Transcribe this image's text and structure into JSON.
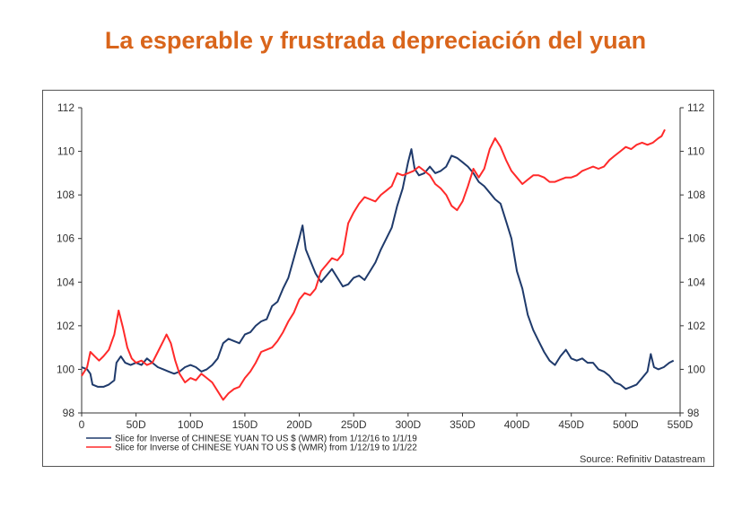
{
  "title": "La esperable y frustrada depreciación del yuan",
  "colors": {
    "title": "#d9651b",
    "series1": "#1f3a6b",
    "series2": "#ff2a2a"
  },
  "chart_data": {
    "type": "line",
    "xlim": [
      0,
      550
    ],
    "ylim": [
      98,
      112
    ],
    "x_ticks": [
      "0",
      "50D",
      "100D",
      "150D",
      "200D",
      "250D",
      "300D",
      "350D",
      "400D",
      "450D",
      "500D",
      "550D"
    ],
    "y_ticks": [
      "98",
      "100",
      "102",
      "104",
      "106",
      "108",
      "110",
      "112"
    ],
    "grid": false,
    "legend_position": "bottom-left",
    "source": "Source: Refinitiv Datastream",
    "series": [
      {
        "name": "Slice for Inverse of CHINESE YUAN TO US $ (WMR) from 1/12/16 to 1/1/19",
        "color": "#1f3a6b",
        "points": [
          [
            0,
            100.1
          ],
          [
            5,
            100.0
          ],
          [
            8,
            99.8
          ],
          [
            10,
            99.3
          ],
          [
            15,
            99.2
          ],
          [
            20,
            99.2
          ],
          [
            25,
            99.3
          ],
          [
            30,
            99.5
          ],
          [
            32,
            100.3
          ],
          [
            36,
            100.6
          ],
          [
            40,
            100.3
          ],
          [
            45,
            100.2
          ],
          [
            50,
            100.3
          ],
          [
            55,
            100.2
          ],
          [
            60,
            100.5
          ],
          [
            65,
            100.3
          ],
          [
            70,
            100.1
          ],
          [
            75,
            100.0
          ],
          [
            80,
            99.9
          ],
          [
            85,
            99.8
          ],
          [
            90,
            99.9
          ],
          [
            95,
            100.1
          ],
          [
            100,
            100.2
          ],
          [
            105,
            100.1
          ],
          [
            110,
            99.9
          ],
          [
            115,
            100.0
          ],
          [
            120,
            100.2
          ],
          [
            125,
            100.5
          ],
          [
            130,
            101.2
          ],
          [
            135,
            101.4
          ],
          [
            140,
            101.3
          ],
          [
            145,
            101.2
          ],
          [
            150,
            101.6
          ],
          [
            155,
            101.7
          ],
          [
            160,
            102.0
          ],
          [
            165,
            102.2
          ],
          [
            170,
            102.3
          ],
          [
            175,
            102.9
          ],
          [
            180,
            103.1
          ],
          [
            185,
            103.7
          ],
          [
            190,
            104.2
          ],
          [
            195,
            105.1
          ],
          [
            200,
            106.0
          ],
          [
            203,
            106.6
          ],
          [
            206,
            105.5
          ],
          [
            210,
            105.0
          ],
          [
            215,
            104.4
          ],
          [
            220,
            104.0
          ],
          [
            225,
            104.3
          ],
          [
            230,
            104.6
          ],
          [
            235,
            104.2
          ],
          [
            240,
            103.8
          ],
          [
            245,
            103.9
          ],
          [
            250,
            104.2
          ],
          [
            255,
            104.3
          ],
          [
            260,
            104.1
          ],
          [
            265,
            104.5
          ],
          [
            270,
            104.9
          ],
          [
            275,
            105.5
          ],
          [
            280,
            106.0
          ],
          [
            285,
            106.5
          ],
          [
            290,
            107.5
          ],
          [
            295,
            108.3
          ],
          [
            300,
            109.5
          ],
          [
            303,
            110.1
          ],
          [
            306,
            109.2
          ],
          [
            310,
            108.9
          ],
          [
            315,
            109.0
          ],
          [
            320,
            109.3
          ],
          [
            325,
            109.0
          ],
          [
            330,
            109.1
          ],
          [
            335,
            109.3
          ],
          [
            340,
            109.8
          ],
          [
            345,
            109.7
          ],
          [
            350,
            109.5
          ],
          [
            355,
            109.3
          ],
          [
            360,
            109.0
          ],
          [
            365,
            108.6
          ],
          [
            370,
            108.4
          ],
          [
            375,
            108.1
          ],
          [
            380,
            107.8
          ],
          [
            385,
            107.6
          ],
          [
            390,
            106.8
          ],
          [
            395,
            106.0
          ],
          [
            400,
            104.5
          ],
          [
            405,
            103.7
          ],
          [
            410,
            102.5
          ],
          [
            415,
            101.8
          ],
          [
            420,
            101.3
          ],
          [
            425,
            100.8
          ],
          [
            430,
            100.4
          ],
          [
            435,
            100.2
          ],
          [
            440,
            100.6
          ],
          [
            445,
            100.9
          ],
          [
            450,
            100.5
          ],
          [
            455,
            100.4
          ],
          [
            460,
            100.5
          ],
          [
            465,
            100.3
          ],
          [
            470,
            100.3
          ],
          [
            475,
            100.0
          ],
          [
            480,
            99.9
          ],
          [
            485,
            99.7
          ],
          [
            490,
            99.4
          ],
          [
            495,
            99.3
          ],
          [
            500,
            99.1
          ],
          [
            505,
            99.2
          ],
          [
            510,
            99.3
          ],
          [
            515,
            99.6
          ],
          [
            520,
            99.9
          ],
          [
            523,
            100.7
          ],
          [
            526,
            100.1
          ],
          [
            530,
            100.0
          ],
          [
            535,
            100.1
          ],
          [
            540,
            100.3
          ],
          [
            544,
            100.4
          ]
        ]
      },
      {
        "name": "Slice for Inverse of CHINESE YUAN TO US $ (WMR) from 1/12/19 to 1/1/22",
        "color": "#ff2a2a",
        "points": [
          [
            0,
            99.7
          ],
          [
            5,
            100.1
          ],
          [
            8,
            100.8
          ],
          [
            12,
            100.6
          ],
          [
            16,
            100.4
          ],
          [
            20,
            100.6
          ],
          [
            25,
            100.9
          ],
          [
            30,
            101.6
          ],
          [
            34,
            102.7
          ],
          [
            38,
            101.9
          ],
          [
            42,
            101.0
          ],
          [
            46,
            100.5
          ],
          [
            50,
            100.3
          ],
          [
            55,
            100.4
          ],
          [
            60,
            100.2
          ],
          [
            65,
            100.3
          ],
          [
            70,
            100.8
          ],
          [
            75,
            101.3
          ],
          [
            78,
            101.6
          ],
          [
            82,
            101.2
          ],
          [
            86,
            100.4
          ],
          [
            90,
            99.8
          ],
          [
            95,
            99.4
          ],
          [
            100,
            99.6
          ],
          [
            105,
            99.5
          ],
          [
            110,
            99.8
          ],
          [
            115,
            99.6
          ],
          [
            120,
            99.4
          ],
          [
            125,
            99.0
          ],
          [
            130,
            98.6
          ],
          [
            135,
            98.9
          ],
          [
            140,
            99.1
          ],
          [
            145,
            99.2
          ],
          [
            150,
            99.6
          ],
          [
            155,
            99.9
          ],
          [
            160,
            100.3
          ],
          [
            165,
            100.8
          ],
          [
            170,
            100.9
          ],
          [
            175,
            101.0
          ],
          [
            180,
            101.3
          ],
          [
            185,
            101.7
          ],
          [
            190,
            102.2
          ],
          [
            195,
            102.6
          ],
          [
            200,
            103.2
          ],
          [
            205,
            103.5
          ],
          [
            210,
            103.4
          ],
          [
            215,
            103.7
          ],
          [
            220,
            104.5
          ],
          [
            225,
            104.8
          ],
          [
            230,
            105.1
          ],
          [
            235,
            105.0
          ],
          [
            240,
            105.3
          ],
          [
            245,
            106.7
          ],
          [
            250,
            107.2
          ],
          [
            255,
            107.6
          ],
          [
            260,
            107.9
          ],
          [
            265,
            107.8
          ],
          [
            270,
            107.7
          ],
          [
            275,
            108.0
          ],
          [
            280,
            108.2
          ],
          [
            285,
            108.4
          ],
          [
            290,
            109.0
          ],
          [
            295,
            108.9
          ],
          [
            300,
            109.0
          ],
          [
            305,
            109.1
          ],
          [
            310,
            109.3
          ],
          [
            315,
            109.1
          ],
          [
            320,
            108.9
          ],
          [
            325,
            108.5
          ],
          [
            330,
            108.3
          ],
          [
            335,
            108.0
          ],
          [
            340,
            107.5
          ],
          [
            345,
            107.3
          ],
          [
            350,
            107.7
          ],
          [
            355,
            108.4
          ],
          [
            360,
            109.2
          ],
          [
            365,
            108.8
          ],
          [
            370,
            109.2
          ],
          [
            375,
            110.1
          ],
          [
            380,
            110.6
          ],
          [
            385,
            110.2
          ],
          [
            390,
            109.6
          ],
          [
            395,
            109.1
          ],
          [
            400,
            108.8
          ],
          [
            405,
            108.5
          ],
          [
            410,
            108.7
          ],
          [
            415,
            108.9
          ],
          [
            420,
            108.9
          ],
          [
            425,
            108.8
          ],
          [
            430,
            108.6
          ],
          [
            435,
            108.6
          ],
          [
            440,
            108.7
          ],
          [
            445,
            108.8
          ],
          [
            450,
            108.8
          ],
          [
            455,
            108.9
          ],
          [
            460,
            109.1
          ],
          [
            465,
            109.2
          ],
          [
            470,
            109.3
          ],
          [
            475,
            109.2
          ],
          [
            480,
            109.3
          ],
          [
            485,
            109.6
          ],
          [
            490,
            109.8
          ],
          [
            495,
            110.0
          ],
          [
            500,
            110.2
          ],
          [
            505,
            110.1
          ],
          [
            510,
            110.3
          ],
          [
            515,
            110.4
          ],
          [
            520,
            110.3
          ],
          [
            525,
            110.4
          ],
          [
            530,
            110.6
          ],
          [
            533,
            110.7
          ],
          [
            536,
            111.0
          ]
        ]
      }
    ]
  }
}
